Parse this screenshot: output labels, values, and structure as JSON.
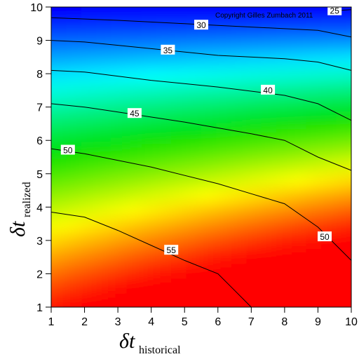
{
  "chart_data": {
    "type": "contour",
    "copyright": "Copyright Gilles Zumbach 2011",
    "xlabel_symbol": "δt",
    "xlabel_sub": "historical",
    "ylabel_symbol": "δt",
    "ylabel_sub": "realized",
    "xlim": [
      1,
      10
    ],
    "ylim": [
      1,
      10
    ],
    "x_ticks": [
      "1",
      "2",
      "3",
      "4",
      "5",
      "6",
      "7",
      "8",
      "9",
      "10"
    ],
    "y_ticks": [
      "1",
      "2",
      "3",
      "4",
      "5",
      "6",
      "7",
      "8",
      "9",
      "10"
    ],
    "colormap": [
      "#ff0000",
      "#ffff00",
      "#00e000",
      "#00ffff",
      "#0000ff"
    ],
    "contours": [
      {
        "level": 25,
        "label": "25",
        "points": [
          [
            9.35,
            9.88
          ],
          [
            10,
            9.92
          ]
        ],
        "label_at": [
          9.5,
          9.88
        ]
      },
      {
        "level": 30,
        "label": "30",
        "points": [
          [
            1,
            9.68
          ],
          [
            3,
            9.6
          ],
          [
            5,
            9.5
          ],
          [
            6,
            9.45
          ],
          [
            8,
            9.35
          ],
          [
            9,
            9.3
          ],
          [
            10,
            9.1
          ]
        ],
        "label_at": [
          5.5,
          9.45
        ]
      },
      {
        "level": 35,
        "label": "35",
        "points": [
          [
            1,
            9.0
          ],
          [
            2,
            8.95
          ],
          [
            4,
            8.75
          ],
          [
            6,
            8.55
          ],
          [
            8,
            8.45
          ],
          [
            9,
            8.35
          ],
          [
            10,
            8.1
          ]
        ],
        "label_at": [
          4.5,
          8.7
        ]
      },
      {
        "level": 40,
        "label": "40",
        "points": [
          [
            1,
            8.1
          ],
          [
            2,
            8.05
          ],
          [
            4,
            7.8
          ],
          [
            6,
            7.6
          ],
          [
            8,
            7.35
          ],
          [
            9,
            7.1
          ],
          [
            10,
            6.6
          ]
        ],
        "label_at": [
          7.5,
          7.5
        ]
      },
      {
        "level": 45,
        "label": "45",
        "points": [
          [
            1,
            7.1
          ],
          [
            2,
            7.0
          ],
          [
            3,
            6.85
          ],
          [
            5,
            6.55
          ],
          [
            7,
            6.2
          ],
          [
            8,
            6.0
          ],
          [
            9,
            5.5
          ],
          [
            10,
            5.1
          ]
        ],
        "label_at": [
          3.5,
          6.8
        ]
      },
      {
        "level": 50,
        "label": "50",
        "points": [
          [
            1,
            5.75
          ],
          [
            2,
            5.6
          ],
          [
            4,
            5.2
          ],
          [
            6,
            4.7
          ],
          [
            7,
            4.4
          ],
          [
            8,
            4.1
          ],
          [
            9,
            3.4
          ],
          [
            10,
            2.4
          ]
        ],
        "label_at": [
          1.5,
          5.7
        ]
      },
      {
        "level": 50,
        "label": "50",
        "points": [],
        "label_at": [
          9.2,
          3.1
        ]
      },
      {
        "level": 55,
        "label": "55",
        "points": [
          [
            1,
            3.85
          ],
          [
            2,
            3.7
          ],
          [
            3,
            3.3
          ],
          [
            4,
            2.85
          ],
          [
            5,
            2.4
          ],
          [
            6,
            2.0
          ],
          [
            6.5,
            1.5
          ],
          [
            7,
            1.0
          ]
        ],
        "label_at": [
          4.6,
          2.7
        ]
      }
    ]
  }
}
